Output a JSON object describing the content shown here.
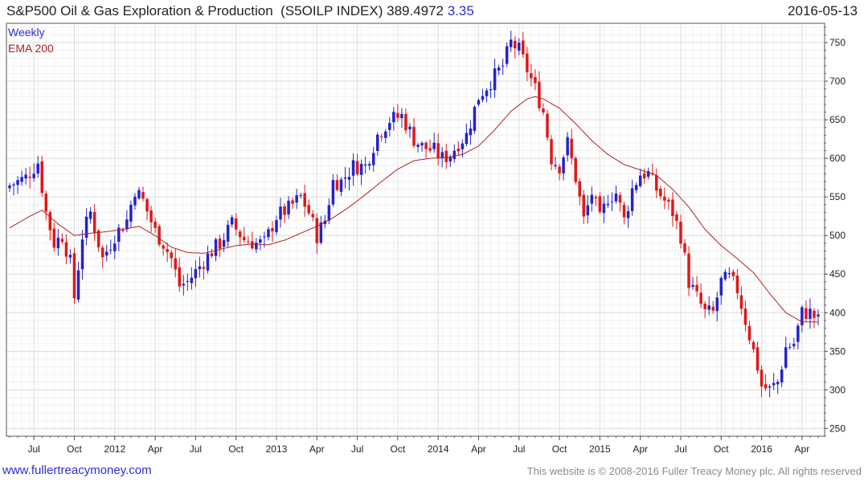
{
  "header": {
    "name": "S&P500 Oil & Gas Exploration & Production",
    "ticker": "(S5OILP INDEX)",
    "last": "389.4972",
    "change": "3.35",
    "date": "2016-05-13"
  },
  "footer": {
    "link": "www.fullertreacymoney.com",
    "copyright": "This website is © 2008-2016 Fuller Treacy Money plc. All rights reserved"
  },
  "colors": {
    "up": "#2424c8",
    "down": "#e01818",
    "ema": "#b02020",
    "grid": "#dcdcdc",
    "frame": "#555555"
  },
  "chart_data": {
    "type": "candlestick",
    "title": "S&P500 Oil & Gas Exploration & Production (S5OILP INDEX)",
    "frequency_label": "Weekly",
    "legend": [
      "Weekly",
      "EMA 200"
    ],
    "legend_position": "top-left",
    "y_axis_side": "right",
    "ylim": [
      240,
      775
    ],
    "y_ticks": [
      250,
      300,
      350,
      400,
      450,
      500,
      550,
      600,
      650,
      700,
      750
    ],
    "x_range": [
      0,
      200
    ],
    "x_ticks": [
      {
        "label": "Jul",
        "week": 6
      },
      {
        "label": "Oct",
        "week": 16
      },
      {
        "label": "2012",
        "week": 26
      },
      {
        "label": "Apr",
        "week": 36
      },
      {
        "label": "Jul",
        "week": 46
      },
      {
        "label": "Oct",
        "week": 56
      },
      {
        "label": "2013",
        "week": 66
      },
      {
        "label": "Apr",
        "week": 76
      },
      {
        "label": "Jul",
        "week": 86
      },
      {
        "label": "Oct",
        "week": 96
      },
      {
        "label": "2014",
        "week": 106
      },
      {
        "label": "Apr",
        "week": 116
      },
      {
        "label": "Jul",
        "week": 126
      },
      {
        "label": "Oct",
        "week": 136
      },
      {
        "label": "2015",
        "week": 146
      },
      {
        "label": "Apr",
        "week": 156
      },
      {
        "label": "Jul",
        "week": 166
      },
      {
        "label": "Oct",
        "week": 176
      },
      {
        "label": "2016",
        "week": 186
      },
      {
        "label": "Apr",
        "week": 196
      }
    ],
    "close_anchors": [
      [
        0,
        565
      ],
      [
        4,
        575
      ],
      [
        7,
        595
      ],
      [
        9,
        530
      ],
      [
        11,
        490
      ],
      [
        13,
        500
      ],
      [
        15,
        465
      ],
      [
        16,
        420
      ],
      [
        18,
        500
      ],
      [
        20,
        530
      ],
      [
        23,
        470
      ],
      [
        26,
        500
      ],
      [
        29,
        520
      ],
      [
        31,
        560
      ],
      [
        33,
        545
      ],
      [
        36,
        505
      ],
      [
        38,
        490
      ],
      [
        40,
        470
      ],
      [
        42,
        435
      ],
      [
        44,
        440
      ],
      [
        47,
        460
      ],
      [
        50,
        480
      ],
      [
        52,
        490
      ],
      [
        55,
        515
      ],
      [
        58,
        495
      ],
      [
        61,
        490
      ],
      [
        63,
        490
      ],
      [
        66,
        525
      ],
      [
        69,
        535
      ],
      [
        72,
        550
      ],
      [
        74,
        530
      ],
      [
        76,
        500
      ],
      [
        78,
        520
      ],
      [
        80,
        570
      ],
      [
        82,
        570
      ],
      [
        85,
        590
      ],
      [
        88,
        590
      ],
      [
        91,
        630
      ],
      [
        94,
        650
      ],
      [
        97,
        655
      ],
      [
        100,
        625
      ],
      [
        102,
        615
      ],
      [
        105,
        610
      ],
      [
        107,
        600
      ],
      [
        109,
        605
      ],
      [
        111,
        620
      ],
      [
        113,
        630
      ],
      [
        116,
        680
      ],
      [
        119,
        700
      ],
      [
        122,
        720
      ],
      [
        124,
        750
      ],
      [
        126,
        740
      ],
      [
        128,
        715
      ],
      [
        130,
        690
      ],
      [
        132,
        660
      ],
      [
        134,
        600
      ],
      [
        136,
        590
      ],
      [
        138,
        620
      ],
      [
        140,
        575
      ],
      [
        142,
        520
      ],
      [
        144,
        555
      ],
      [
        146,
        520
      ],
      [
        148,
        550
      ],
      [
        150,
        555
      ],
      [
        152,
        520
      ],
      [
        154,
        560
      ],
      [
        156,
        580
      ],
      [
        158,
        580
      ],
      [
        160,
        560
      ],
      [
        162,
        545
      ],
      [
        164,
        530
      ],
      [
        166,
        500
      ],
      [
        168,
        440
      ],
      [
        170,
        420
      ],
      [
        172,
        400
      ],
      [
        174,
        400
      ],
      [
        176,
        440
      ],
      [
        178,
        445
      ],
      [
        180,
        430
      ],
      [
        182,
        390
      ],
      [
        184,
        350
      ],
      [
        185,
        330
      ],
      [
        186,
        305
      ],
      [
        188,
        300
      ],
      [
        190,
        310
      ],
      [
        192,
        355
      ],
      [
        194,
        360
      ],
      [
        196,
        400
      ],
      [
        198,
        400
      ],
      [
        200,
        389.5
      ]
    ],
    "ema200_anchors": [
      [
        0,
        510
      ],
      [
        5,
        525
      ],
      [
        8,
        533
      ],
      [
        12,
        515
      ],
      [
        16,
        500
      ],
      [
        20,
        503
      ],
      [
        24,
        505
      ],
      [
        28,
        508
      ],
      [
        32,
        512
      ],
      [
        36,
        500
      ],
      [
        40,
        485
      ],
      [
        44,
        478
      ],
      [
        48,
        477
      ],
      [
        52,
        482
      ],
      [
        56,
        487
      ],
      [
        60,
        489
      ],
      [
        64,
        488
      ],
      [
        68,
        494
      ],
      [
        72,
        503
      ],
      [
        76,
        512
      ],
      [
        80,
        523
      ],
      [
        84,
        537
      ],
      [
        88,
        553
      ],
      [
        92,
        570
      ],
      [
        96,
        586
      ],
      [
        100,
        597
      ],
      [
        104,
        600
      ],
      [
        108,
        601
      ],
      [
        112,
        605
      ],
      [
        116,
        616
      ],
      [
        120,
        637
      ],
      [
        124,
        661
      ],
      [
        128,
        677
      ],
      [
        130,
        680
      ],
      [
        132,
        677
      ],
      [
        136,
        665
      ],
      [
        140,
        645
      ],
      [
        144,
        623
      ],
      [
        148,
        605
      ],
      [
        152,
        592
      ],
      [
        156,
        585
      ],
      [
        160,
        578
      ],
      [
        164,
        560
      ],
      [
        168,
        537
      ],
      [
        172,
        508
      ],
      [
        176,
        487
      ],
      [
        180,
        470
      ],
      [
        184,
        452
      ],
      [
        188,
        425
      ],
      [
        192,
        400
      ],
      [
        196,
        388
      ],
      [
        200,
        388
      ]
    ]
  }
}
